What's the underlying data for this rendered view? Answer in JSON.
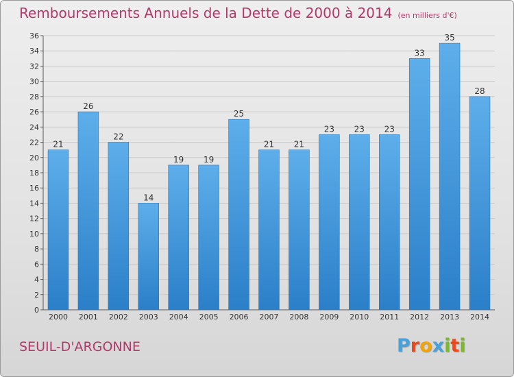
{
  "header": {
    "title": "Remboursements Annuels de la Dette de 2000 à 2014",
    "subtitle": "(en milliers d'€)"
  },
  "footer": {
    "commune": "SEUIL-D'ARGONNE",
    "logo_letters": [
      "P",
      "r",
      "o",
      "x",
      "i",
      "t",
      "i"
    ]
  },
  "colors": {
    "title": "#b3386a",
    "bar_top": "#5daeea",
    "bar_bottom": "#2b7fc8",
    "logo": [
      "#4aa0d8",
      "#e8491d",
      "#f0a30a",
      "#4aa0d8",
      "#7cb82f",
      "#e8491d",
      "#7cb82f"
    ]
  },
  "chart_data": {
    "type": "bar",
    "title": "Remboursements Annuels de la Dette de 2000 à 2014",
    "subtitle": "(en milliers d'€)",
    "categories": [
      "2000",
      "2001",
      "2002",
      "2003",
      "2004",
      "2005",
      "2006",
      "2007",
      "2008",
      "2009",
      "2010",
      "2011",
      "2012",
      "2013",
      "2014"
    ],
    "values": [
      21,
      26,
      22,
      14,
      19,
      19,
      25,
      21,
      21,
      23,
      23,
      23,
      33,
      35,
      28
    ],
    "data_labels": [
      "21",
      "26",
      "22",
      "14",
      "19",
      "19",
      "25",
      "21",
      "21",
      "23",
      "23",
      "23",
      "33",
      "35",
      "28"
    ],
    "ylim": [
      0,
      36
    ],
    "yticks": [
      0,
      2,
      4,
      6,
      8,
      10,
      12,
      14,
      16,
      18,
      20,
      22,
      24,
      26,
      28,
      30,
      32,
      34,
      36
    ],
    "grid": "horizontal",
    "legend": "none"
  }
}
